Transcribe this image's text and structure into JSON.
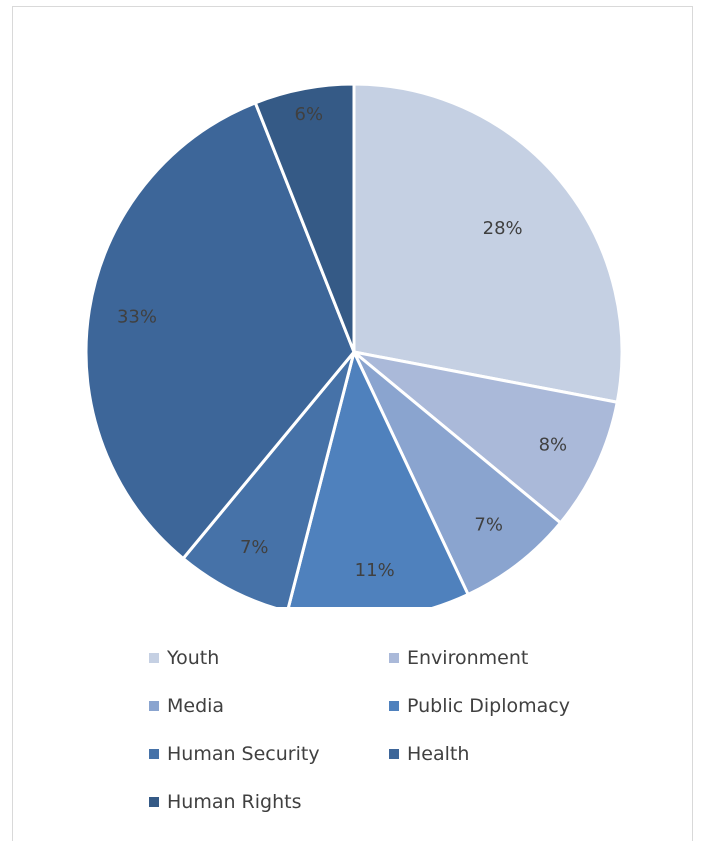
{
  "chart_data": {
    "type": "pie",
    "title": "",
    "start_angle_deg": 0,
    "direction": "clockwise",
    "slices": [
      {
        "label": "Youth",
        "value": 28,
        "display": "28%",
        "color": "#c5d0e3"
      },
      {
        "label": "Environment",
        "value": 8,
        "display": "8%",
        "color": "#aab9d9"
      },
      {
        "label": "Media",
        "value": 7,
        "display": "7%",
        "color": "#8aa4cf"
      },
      {
        "label": "Public Diplomacy",
        "value": 11,
        "display": "11%",
        "color": "#4f81bd"
      },
      {
        "label": "Human Security",
        "value": 7,
        "display": "7%",
        "color": "#4672a8"
      },
      {
        "label": "Health",
        "value": 33,
        "display": "33%",
        "color": "#3d6699"
      },
      {
        "label": "Human Rights",
        "value": 6,
        "display": "6%",
        "color": "#355a86"
      }
    ],
    "legend_position": "bottom"
  }
}
